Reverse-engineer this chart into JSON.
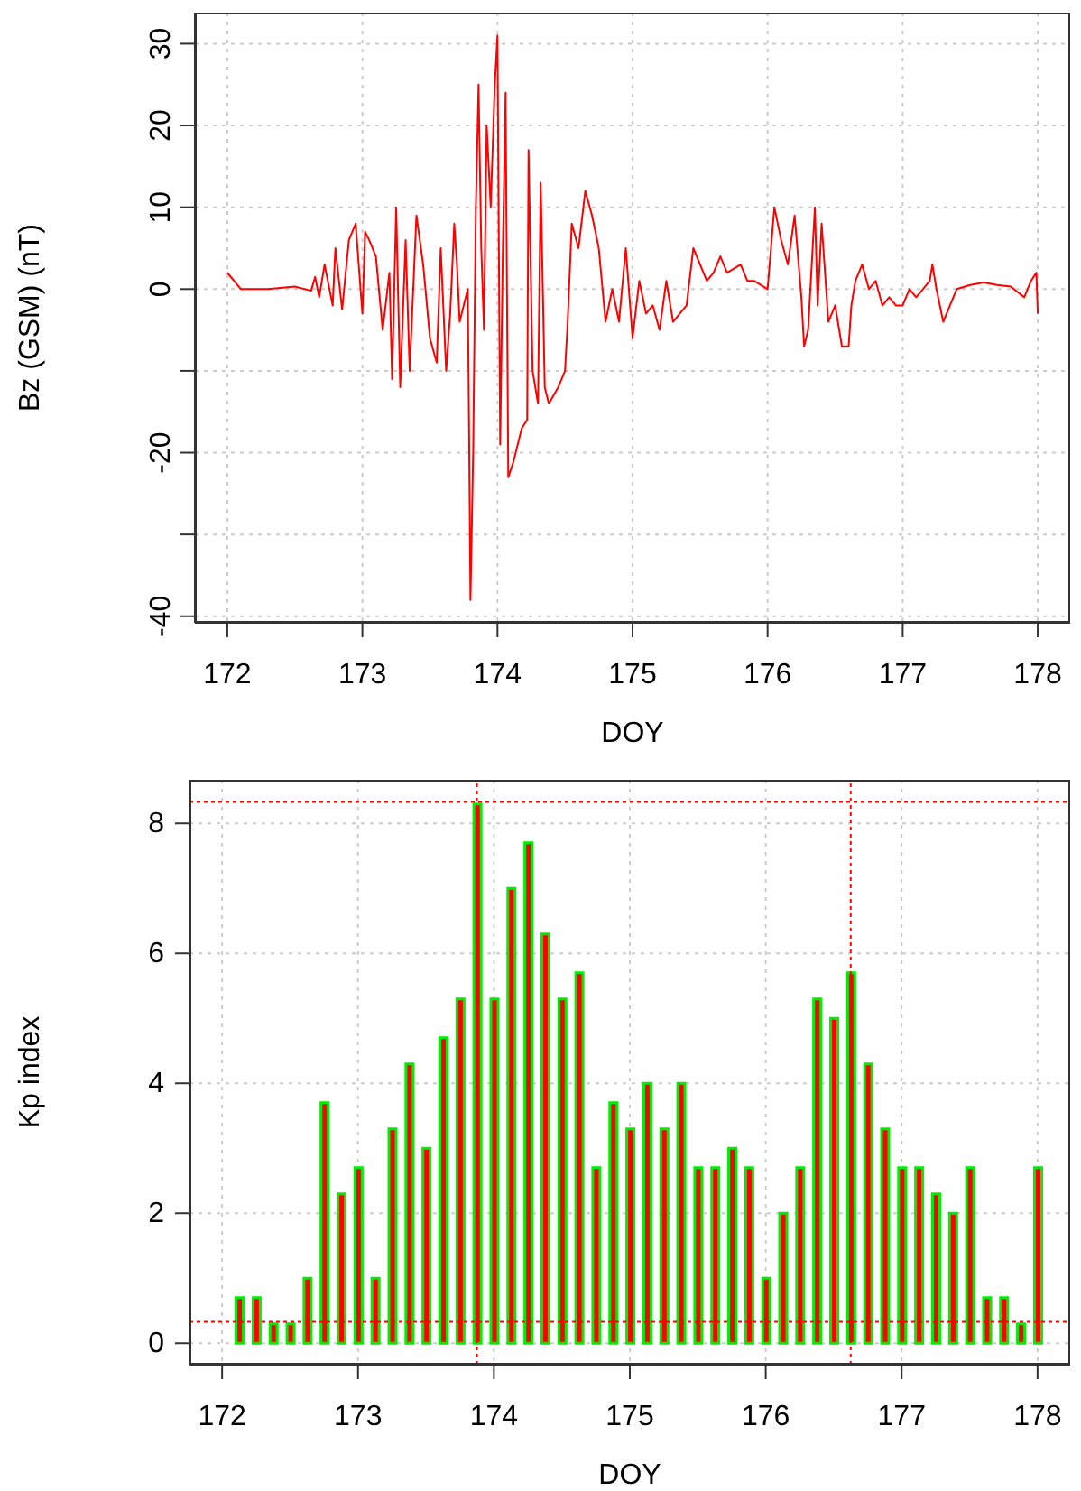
{
  "chart_data": [
    {
      "type": "line",
      "xlabel": "DOY",
      "ylabel": "Bz (GSM) (nT)",
      "xlim": [
        171.76,
        178.24
      ],
      "ylim": [
        -40.8,
        33.8
      ],
      "xticks": [
        172,
        173,
        174,
        175,
        176,
        177,
        178
      ],
      "yticks": [
        -40,
        {
          "value": -30,
          "label": null
        },
        -20,
        {
          "value": -10,
          "label": null
        },
        0,
        10,
        20,
        30
      ],
      "grid": true,
      "line_style": "solid",
      "marker": "none",
      "series": [
        {
          "color": "#ff0000",
          "x": [
            172.0,
            172.05,
            172.1,
            172.3,
            172.5,
            172.62,
            172.65,
            172.68,
            172.72,
            172.78,
            172.8,
            172.85,
            172.9,
            172.95,
            173.0,
            173.02,
            173.05,
            173.1,
            173.15,
            173.2,
            173.22,
            173.25,
            173.28,
            173.32,
            173.35,
            173.4,
            173.45,
            173.5,
            173.55,
            173.58,
            173.62,
            173.65,
            173.68,
            173.7,
            173.72,
            173.75,
            173.78,
            173.79,
            173.8,
            173.82,
            173.84,
            173.86,
            173.88,
            173.9,
            173.92,
            173.95,
            173.98,
            174.0,
            174.02,
            174.04,
            174.06,
            174.08,
            174.12,
            174.18,
            174.22,
            174.23,
            174.26,
            174.3,
            174.32,
            174.35,
            174.38,
            174.45,
            174.5,
            174.52,
            174.55,
            174.6,
            174.65,
            174.7,
            174.75,
            174.8,
            174.85,
            174.9,
            174.95,
            175.0,
            175.05,
            175.1,
            175.15,
            175.2,
            175.25,
            175.3,
            175.35,
            175.4,
            175.45,
            175.5,
            175.55,
            175.6,
            175.65,
            175.7,
            175.8,
            175.85,
            175.9,
            176.0,
            176.03,
            176.05,
            176.1,
            176.15,
            176.2,
            176.25,
            176.27,
            176.3,
            176.35,
            176.37,
            176.4,
            176.45,
            176.5,
            176.55,
            176.6,
            176.62,
            176.65,
            176.7,
            176.75,
            176.8,
            176.85,
            176.9,
            176.95,
            177.0,
            177.05,
            177.1,
            177.15,
            177.2,
            177.22,
            177.25,
            177.3,
            177.35,
            177.4,
            177.5,
            177.6,
            177.7,
            177.8,
            177.9,
            177.95,
            177.99,
            178.0
          ],
          "values": [
            2,
            1,
            0,
            0,
            0.3,
            -0.2,
            1.5,
            -1,
            3,
            -2,
            5,
            -2.5,
            6,
            8,
            -3,
            7,
            6,
            4,
            -5,
            2,
            -11,
            10,
            -12,
            6,
            -10,
            9,
            3,
            -6,
            -9,
            5,
            -10,
            -3,
            8,
            3,
            -4,
            -2,
            0,
            -18,
            -38,
            -20,
            10,
            25,
            5,
            -5,
            20,
            10,
            25,
            31,
            -19,
            5,
            24,
            -23,
            -21,
            -17,
            -16,
            17,
            -10,
            -14,
            13,
            -12,
            -14,
            -12,
            -10,
            -4,
            8,
            5,
            12,
            9,
            5,
            -4,
            0,
            -4,
            5,
            -6,
            1,
            -3,
            -2,
            -5,
            1,
            -4,
            -3,
            -2,
            5,
            3,
            1,
            2,
            4,
            2,
            3,
            1,
            1,
            0,
            6,
            10,
            6,
            3,
            9,
            -1,
            -7,
            -5,
            10,
            -2,
            8,
            -4,
            -2,
            -7,
            -7,
            -2,
            1,
            3,
            0,
            1,
            -2,
            -1,
            -2,
            -2,
            0,
            -1,
            0,
            1,
            3,
            0,
            -4,
            -2,
            0,
            0.5,
            0.8,
            0.5,
            0.3,
            -1,
            1,
            2,
            -3
          ]
        }
      ]
    },
    {
      "type": "bar",
      "xlabel": "DOY",
      "ylabel": "Kp index",
      "xlim": [
        171.76,
        178.24
      ],
      "ylim": [
        -0.33,
        8.67
      ],
      "xticks": [
        172,
        173,
        174,
        175,
        176,
        177,
        178
      ],
      "yticks": [
        0,
        2,
        4,
        6,
        8
      ],
      "grid": true,
      "ref_lines": [
        {
          "axis": "y",
          "value": 8.33,
          "color": "#ff0000",
          "line_style": "dotted"
        },
        {
          "axis": "y",
          "value": 0.33,
          "color": "#ff0000",
          "line_style": "dotted"
        },
        {
          "axis": "x",
          "value": 173.875,
          "color": "#ff0000",
          "line_style": "dotted"
        },
        {
          "axis": "x",
          "value": 176.625,
          "color": "#ff0000",
          "line_style": "dotted"
        }
      ],
      "series": [
        {
          "color": "#ff0000",
          "x": [
            172.125,
            172.25,
            172.375,
            172.5,
            172.625,
            172.75,
            172.875,
            173.0,
            173.125,
            173.25,
            173.375,
            173.5,
            173.625,
            173.75,
            173.875,
            174.0,
            174.125,
            174.25,
            174.375,
            174.5,
            174.625,
            174.75,
            174.875,
            175.0,
            175.125,
            175.25,
            175.375,
            175.5,
            175.625,
            175.75,
            175.875,
            176.0,
            176.125,
            176.25,
            176.375,
            176.5,
            176.625,
            176.75,
            176.875,
            177.0,
            177.125,
            177.25,
            177.375,
            177.5,
            177.625,
            177.75,
            177.875,
            178.0
          ],
          "values": [
            0.7,
            0.7,
            0.3,
            0.3,
            1.0,
            3.7,
            2.3,
            2.7,
            1.0,
            3.3,
            4.3,
            3.0,
            4.7,
            5.3,
            8.3,
            5.3,
            7.0,
            7.7,
            6.3,
            5.3,
            5.7,
            2.7,
            3.7,
            3.3,
            4.0,
            3.3,
            4.0,
            2.7,
            2.7,
            3.0,
            2.7,
            1.0,
            2.0,
            2.7,
            5.3,
            5.0,
            5.7,
            4.3,
            3.3,
            2.7,
            2.7,
            2.3,
            2.0,
            2.7,
            0.7,
            0.7,
            0.3,
            2.7
          ]
        }
      ]
    }
  ]
}
